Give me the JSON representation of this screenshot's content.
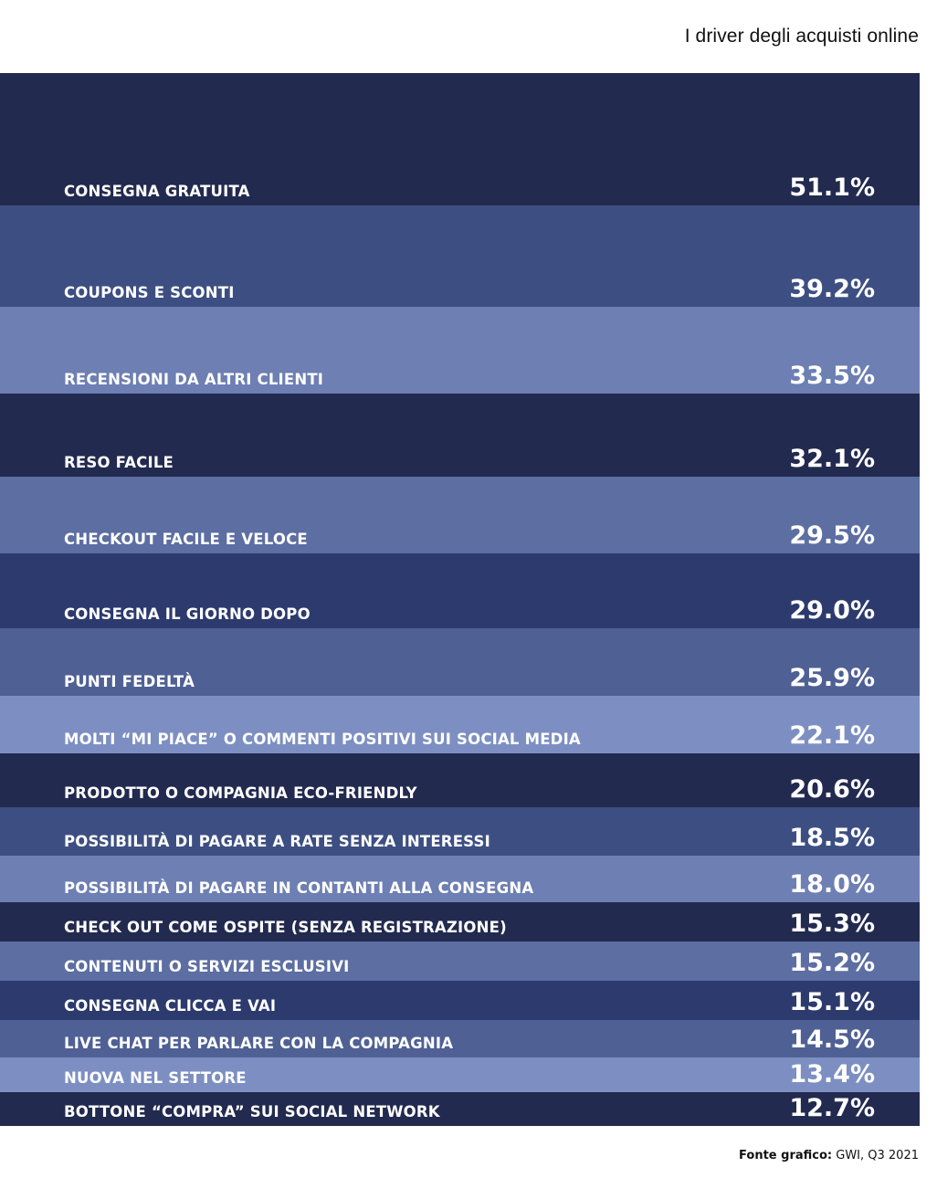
{
  "title": "I driver degli acquisti online",
  "source": {
    "prefix": "Fonte grafico:",
    "text": " GWI, Q3 2021"
  },
  "colors": {
    "navy": "#232a4f",
    "dark_blue": "#2c3a6d",
    "mid_blue": "#3d4f82",
    "slate_blue": "#4f6094",
    "periwinkle": "#5c6ea2",
    "light_periwinkle": "#6d7fb3",
    "pale_periwinkle": "#7d8fc2"
  },
  "chart_data": {
    "type": "bar",
    "categories": [
      "CONSEGNA GRATUITA",
      "COUPONS E SCONTI",
      "RECENSIONI DA ALTRI CLIENTI",
      "RESO FACILE",
      "CHECKOUT FACILE E VELOCE",
      "CONSEGNA IL GIORNO DOPO",
      "PUNTI FEDELTÀ",
      "MOLTI “MI PIACE” O COMMENTI POSITIVI SUI SOCIAL MEDIA",
      "PRODOTTO O COMPAGNIA ECO-FRIENDLY",
      "POSSIBILITÀ DI PAGARE A RATE SENZA INTERESSI",
      "POSSIBILITÀ DI PAGARE IN CONTANTI ALLA CONSEGNA",
      "CHECK OUT COME OSPITE (SENZA REGISTRAZIONE)",
      "CONTENUTI O SERVIZI ESCLUSIVI",
      "CONSEGNA CLICCA E VAI",
      "LIVE CHAT PER PARLARE CON LA COMPAGNIA",
      "NUOVA NEL SETTORE",
      "BOTTONE “COMPRA” SUI SOCIAL NETWORK"
    ],
    "values": [
      51.1,
      39.2,
      33.5,
      32.1,
      29.5,
      29.0,
      25.9,
      22.1,
      20.6,
      18.5,
      18.0,
      15.3,
      15.2,
      15.1,
      14.5,
      13.4,
      12.7
    ],
    "value_labels": [
      "51.1%",
      "39.2%",
      "33.5%",
      "32.1%",
      "29.5%",
      "29.0%",
      "25.9%",
      "22.1%",
      "20.6%",
      "18.5%",
      "18.0%",
      "15.3%",
      "15.2%",
      "15.1%",
      "14.5%",
      "13.4%",
      "12.7%"
    ],
    "row_colors": [
      "#232a4f",
      "#3d4f82",
      "#6d7fb3",
      "#232a4f",
      "#5c6ea2",
      "#2c3a6d",
      "#4f6094",
      "#7d8fc2",
      "#232a4f",
      "#3d4f82",
      "#6d7fb3",
      "#232a4f",
      "#5c6ea2",
      "#2c3a6d",
      "#4f6094",
      "#7d8fc2",
      "#232a4f"
    ],
    "unit": "%",
    "title": "I driver degli acquisti online",
    "xlabel": "",
    "ylabel": "",
    "grid": false,
    "legend": "none"
  }
}
